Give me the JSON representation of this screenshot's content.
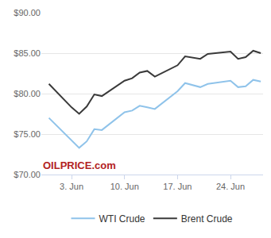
{
  "chart_data": {
    "type": "line",
    "x": [
      0,
      3,
      4,
      5,
      6,
      7,
      10,
      11,
      12,
      13,
      14,
      17,
      18,
      20,
      21,
      24,
      25,
      26,
      27,
      28
    ],
    "series": [
      {
        "name": "WTI Crude",
        "color": "#8fc3ea",
        "values": [
          77.0,
          74.2,
          73.3,
          74.1,
          75.6,
          75.5,
          77.7,
          77.9,
          78.5,
          78.3,
          78.1,
          80.3,
          81.3,
          80.8,
          81.2,
          81.6,
          80.8,
          80.9,
          81.7,
          81.5
        ]
      },
      {
        "name": "Brent Crude",
        "color": "#3a3a3a",
        "values": [
          81.2,
          78.3,
          77.5,
          78.4,
          79.9,
          79.7,
          81.6,
          81.9,
          82.6,
          82.8,
          82.1,
          83.5,
          84.6,
          84.3,
          84.9,
          85.2,
          84.3,
          84.5,
          85.3,
          85.0
        ]
      }
    ],
    "xlim": [
      -1,
      28.3
    ],
    "xticks": [
      {
        "value": 3,
        "label": "3. Jun"
      },
      {
        "value": 10,
        "label": "10. Jun"
      },
      {
        "value": 17,
        "label": "17. Jun"
      },
      {
        "value": 24,
        "label": "24. Jun"
      }
    ],
    "ylim": [
      70,
      90
    ],
    "yticks": [
      {
        "value": 70,
        "label": "$70.00"
      },
      {
        "value": 75,
        "label": "$75.00"
      },
      {
        "value": 80,
        "label": "$80.00"
      },
      {
        "value": 85,
        "label": "$85.00"
      },
      {
        "value": 90,
        "label": "$90.00"
      }
    ],
    "grid": true,
    "legend": "bottom",
    "annotations": [
      "OILPRICE.com"
    ]
  }
}
